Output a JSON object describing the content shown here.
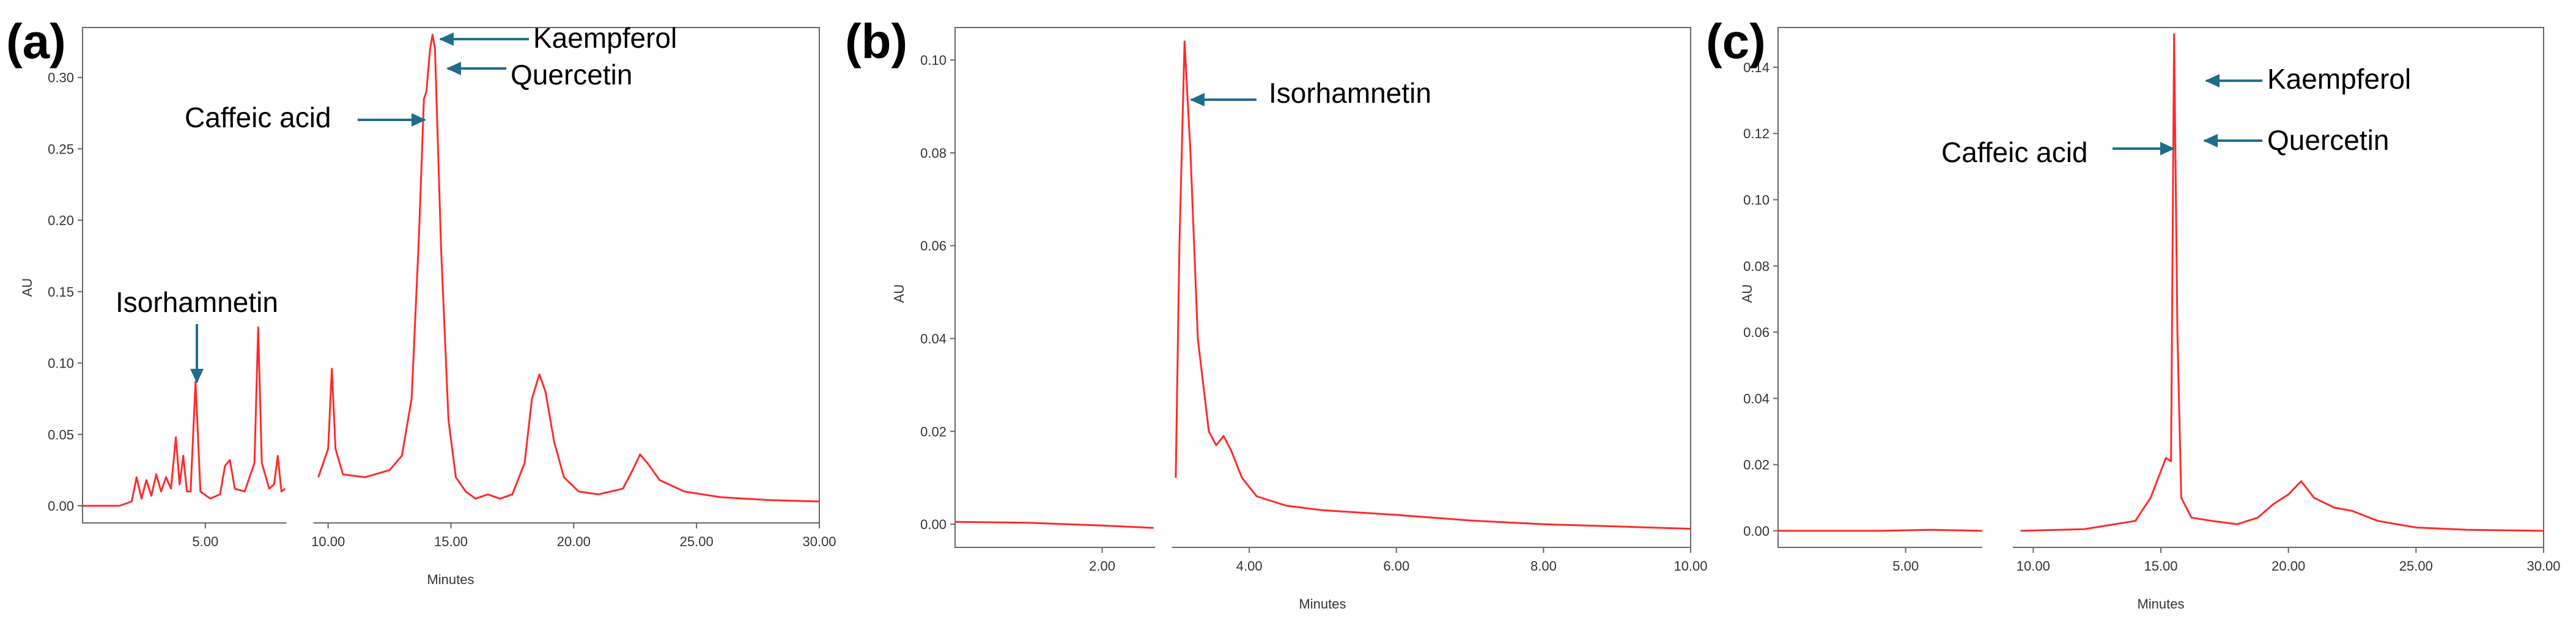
{
  "figure": {
    "trace_color": "#ff2a2a",
    "arrow_color": "#1f6c8c",
    "axis_color": "#666666"
  },
  "chart_data": [
    {
      "panel_label": "(a)",
      "type": "line",
      "xlabel": "Minutes",
      "ylabel": "AU",
      "xlim": [
        0,
        30
      ],
      "ylim": [
        -0.012,
        0.335
      ],
      "x_ticks": [
        5,
        10,
        15,
        20,
        25,
        30
      ],
      "x_tick_labels": [
        "5.00",
        "10.00",
        "15.00",
        "20.00",
        "25.00",
        "30.00"
      ],
      "y_ticks": [
        0,
        0.05,
        0.1,
        0.15,
        0.2,
        0.25,
        0.3
      ],
      "y_tick_labels": [
        "0.00",
        "0.05",
        "0.10",
        "0.15",
        "0.20",
        "0.25",
        "0.30"
      ],
      "break": [
        8.3,
        9.4
      ],
      "series": [
        {
          "segments": [
            [
              [
                0,
                0
              ],
              [
                1.5,
                0
              ],
              [
                2,
                0.003
              ],
              [
                2.2,
                0.02
              ],
              [
                2.4,
                0.005
              ],
              [
                2.6,
                0.018
              ],
              [
                2.8,
                0.007
              ],
              [
                3.0,
                0.022
              ],
              [
                3.2,
                0.01
              ],
              [
                3.4,
                0.02
              ],
              [
                3.6,
                0.012
              ],
              [
                3.8,
                0.048
              ],
              [
                3.95,
                0.015
              ],
              [
                4.1,
                0.035
              ],
              [
                4.25,
                0.01
              ],
              [
                4.4,
                0.01
              ],
              [
                4.6,
                0.087
              ],
              [
                4.8,
                0.01
              ],
              [
                5.2,
                0.005
              ],
              [
                5.6,
                0.008
              ],
              [
                5.8,
                0.028
              ],
              [
                6.0,
                0.032
              ],
              [
                6.2,
                0.012
              ],
              [
                6.6,
                0.01
              ],
              [
                7.0,
                0.03
              ],
              [
                7.15,
                0.125
              ],
              [
                7.3,
                0.03
              ],
              [
                7.6,
                0.012
              ],
              [
                7.8,
                0.015
              ],
              [
                7.95,
                0.035
              ],
              [
                8.1,
                0.01
              ],
              [
                8.25,
                0.012
              ]
            ],
            [
              [
                9.6,
                0.02
              ],
              [
                10.0,
                0.04
              ],
              [
                10.15,
                0.096
              ],
              [
                10.3,
                0.04
              ],
              [
                10.6,
                0.022
              ],
              [
                11.5,
                0.02
              ],
              [
                12.5,
                0.025
              ],
              [
                13.0,
                0.035
              ],
              [
                13.4,
                0.075
              ],
              [
                13.7,
                0.19
              ],
              [
                13.9,
                0.285
              ],
              [
                14.0,
                0.29
              ],
              [
                14.15,
                0.32
              ],
              [
                14.25,
                0.33
              ],
              [
                14.35,
                0.32
              ],
              [
                14.6,
                0.18
              ],
              [
                14.9,
                0.06
              ],
              [
                15.2,
                0.02
              ],
              [
                15.6,
                0.01
              ],
              [
                16.0,
                0.005
              ],
              [
                16.5,
                0.008
              ],
              [
                17.0,
                0.005
              ],
              [
                17.5,
                0.008
              ],
              [
                18.0,
                0.03
              ],
              [
                18.3,
                0.075
              ],
              [
                18.6,
                0.092
              ],
              [
                18.85,
                0.08
              ],
              [
                19.2,
                0.045
              ],
              [
                19.6,
                0.02
              ],
              [
                20.2,
                0.01
              ],
              [
                21.0,
                0.008
              ],
              [
                22.0,
                0.012
              ],
              [
                22.4,
                0.025
              ],
              [
                22.7,
                0.036
              ],
              [
                23.0,
                0.03
              ],
              [
                23.5,
                0.018
              ],
              [
                24.5,
                0.01
              ],
              [
                26.0,
                0.006
              ],
              [
                28.0,
                0.004
              ],
              [
                30.0,
                0.003
              ]
            ]
          ]
        }
      ],
      "annotations": [
        {
          "text": "Kaempferol",
          "x": 14.3,
          "y": 0.33
        },
        {
          "text": "Quercetin",
          "x": 14.4,
          "y": 0.32
        },
        {
          "text": "Caffeic acid",
          "x": 13.8,
          "y": 0.285
        },
        {
          "text": "Isorhamnetin",
          "x": 4.6,
          "y": 0.092
        }
      ]
    },
    {
      "panel_label": "(b)",
      "type": "line",
      "xlabel": "Minutes",
      "ylabel": "AU",
      "xlim": [
        0,
        10
      ],
      "ylim": [
        -0.005,
        0.107
      ],
      "x_ticks": [
        2,
        4,
        6,
        8,
        10
      ],
      "x_tick_labels": [
        "2.00",
        "4.00",
        "6.00",
        "8.00",
        "10.00"
      ],
      "y_ticks": [
        0,
        0.02,
        0.04,
        0.06,
        0.08,
        0.1
      ],
      "y_tick_labels": [
        "0.00",
        "0.02",
        "0.04",
        "0.06",
        "0.08",
        "0.10"
      ],
      "break": [
        2.72,
        2.95
      ],
      "series": [
        {
          "segments": [
            [
              [
                0,
                0.0005
              ],
              [
                1.0,
                0.0003
              ],
              [
                2.0,
                -0.0003
              ],
              [
                2.7,
                -0.0008
              ]
            ],
            [
              [
                3.0,
                0.01
              ],
              [
                3.05,
                0.06
              ],
              [
                3.12,
                0.104
              ],
              [
                3.2,
                0.08
              ],
              [
                3.3,
                0.04
              ],
              [
                3.45,
                0.02
              ],
              [
                3.55,
                0.017
              ],
              [
                3.65,
                0.019
              ],
              [
                3.75,
                0.016
              ],
              [
                3.9,
                0.01
              ],
              [
                4.1,
                0.006
              ],
              [
                4.5,
                0.004
              ],
              [
                5.0,
                0.003
              ],
              [
                6.0,
                0.002
              ],
              [
                7.0,
                0.0008
              ],
              [
                8.0,
                0
              ],
              [
                9.0,
                -0.0005
              ],
              [
                10.0,
                -0.001
              ]
            ]
          ]
        }
      ],
      "annotations": [
        {
          "text": "Isorhamnetin",
          "x": 3.12,
          "y": 0.094
        }
      ]
    },
    {
      "panel_label": "(c)",
      "type": "line",
      "xlabel": "Minutes",
      "ylabel": "AU",
      "xlim": [
        0,
        30
      ],
      "ylim": [
        -0.005,
        0.152
      ],
      "x_ticks": [
        5,
        10,
        15,
        20,
        25,
        30
      ],
      "x_tick_labels": [
        "5.00",
        "10.00",
        "15.00",
        "20.00",
        "25.00",
        "30.00"
      ],
      "y_ticks": [
        0,
        0.02,
        0.04,
        0.06,
        0.08,
        0.1,
        0.12,
        0.14
      ],
      "y_tick_labels": [
        "0.00",
        "0.02",
        "0.04",
        "0.06",
        "0.08",
        "0.10",
        "0.12",
        "0.14"
      ],
      "break": [
        8.0,
        9.2
      ],
      "series": [
        {
          "segments": [
            [
              [
                0,
                0
              ],
              [
                4.0,
                0
              ],
              [
                6.0,
                0.0003
              ],
              [
                8.0,
                0
              ]
            ],
            [
              [
                9.5,
                0
              ],
              [
                12.0,
                0.0005
              ],
              [
                14.0,
                0.003
              ],
              [
                14.6,
                0.01
              ],
              [
                15.0,
                0.018
              ],
              [
                15.2,
                0.022
              ],
              [
                15.4,
                0.021
              ],
              [
                15.52,
                0.15
              ],
              [
                15.65,
                0.06
              ],
              [
                15.8,
                0.01
              ],
              [
                16.2,
                0.004
              ],
              [
                17.0,
                0.003
              ],
              [
                18.0,
                0.002
              ],
              [
                18.8,
                0.004
              ],
              [
                19.4,
                0.008
              ],
              [
                20.0,
                0.011
              ],
              [
                20.5,
                0.015
              ],
              [
                21.0,
                0.01
              ],
              [
                21.8,
                0.007
              ],
              [
                22.5,
                0.006
              ],
              [
                23.5,
                0.003
              ],
              [
                25.0,
                0.001
              ],
              [
                27.0,
                0.0003
              ],
              [
                30.0,
                0
              ]
            ]
          ]
        }
      ],
      "annotations": [
        {
          "text": "Kaempferol",
          "x": 15.55,
          "y": 0.14
        },
        {
          "text": "Quercetin",
          "x": 15.6,
          "y": 0.119
        },
        {
          "text": "Caffeic acid",
          "x": 15.3,
          "y": 0.119
        }
      ]
    }
  ]
}
